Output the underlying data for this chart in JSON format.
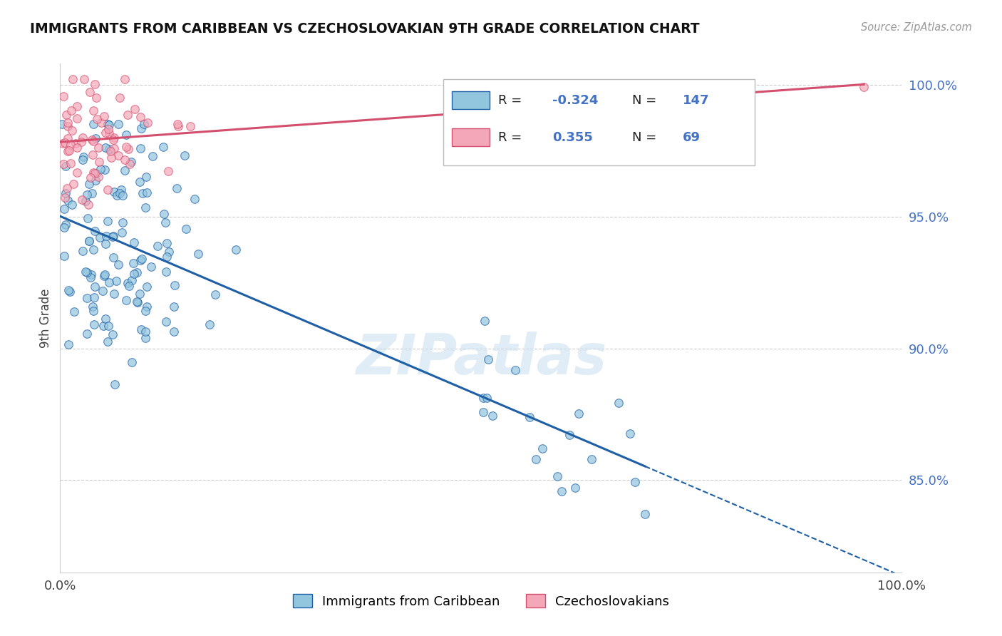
{
  "title": "IMMIGRANTS FROM CARIBBEAN VS CZECHOSLOVAKIAN 9TH GRADE CORRELATION CHART",
  "source": "Source: ZipAtlas.com",
  "ylabel": "9th Grade",
  "xlim": [
    0.0,
    1.0
  ],
  "ylim": [
    0.815,
    1.008
  ],
  "ytick_vals": [
    0.85,
    0.9,
    0.95,
    1.0
  ],
  "ytick_labels": [
    "85.0%",
    "90.0%",
    "95.0%",
    "100.0%"
  ],
  "xtick_vals": [
    0.0,
    0.2,
    0.4,
    0.6,
    0.8,
    1.0
  ],
  "xtick_labels": [
    "0.0%",
    "",
    "",
    "",
    "",
    "100.0%"
  ],
  "legend_label1": "Immigrants from Caribbean",
  "legend_label2": "Czechoslovakians",
  "blue_R": -0.324,
  "blue_N": 147,
  "pink_R": 0.355,
  "pink_N": 69,
  "blue_color": "#92c5de",
  "pink_color": "#f4a7b9",
  "trendline_blue": "#1f5fa6",
  "trendline_pink": "#d44f6e",
  "watermark": "ZIPatlas",
  "blue_seed": 10,
  "pink_seed": 25
}
